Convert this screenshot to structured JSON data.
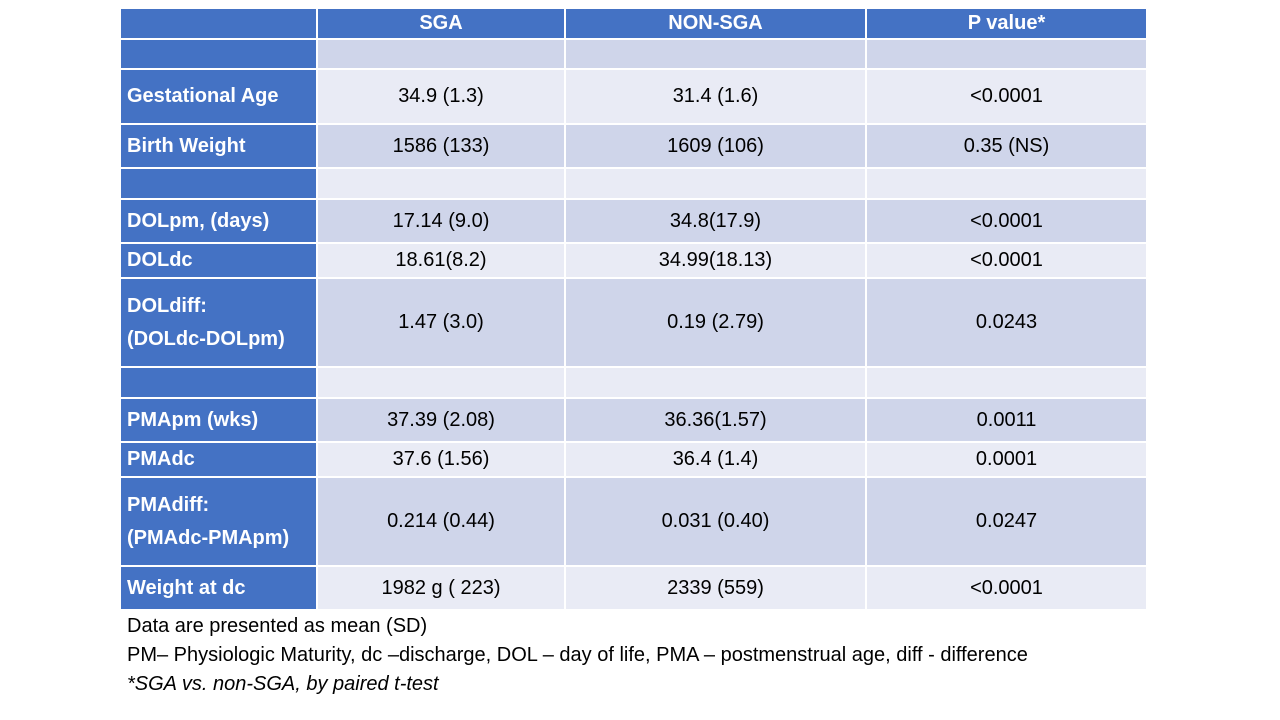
{
  "table": {
    "headers": [
      "",
      "SGA",
      "NON-SGA",
      "P value*"
    ],
    "rows": [
      {
        "label": "",
        "sga": "",
        "non_sga": "",
        "p": ""
      },
      {
        "label": "Gestational Age",
        "sga": "34.9 (1.3)",
        "non_sga": "31.4 (1.6)",
        "p": "<0.0001"
      },
      {
        "label": "Birth Weight",
        "sga": "1586 (133)",
        "non_sga": "1609 (106)",
        "p": "0.35 (NS)"
      },
      {
        "label": "",
        "sga": "",
        "non_sga": "",
        "p": ""
      },
      {
        "label": "DOLpm, (days)",
        "sga": "17.14 (9.0)",
        "non_sga": "34.8(17.9)",
        "p": "<0.0001"
      },
      {
        "label": "DOLdc",
        "sga": "18.61(8.2)",
        "non_sga": "34.99(18.13)",
        "p": "<0.0001"
      },
      {
        "label_line1": "DOLdiff:",
        "label_line2": "(DOLdc-DOLpm)",
        "sga": "1.47 (3.0)",
        "non_sga": "0.19 (2.79)",
        "p": "0.0243"
      },
      {
        "label": "",
        "sga": "",
        "non_sga": "",
        "p": ""
      },
      {
        "label": "PMApm (wks)",
        "sga": "37.39 (2.08)",
        "non_sga": "36.36(1.57)",
        "p": "0.0011"
      },
      {
        "label": "PMAdc",
        "sga": "37.6 (1.56)",
        "non_sga": "36.4 (1.4)",
        "p": "0.0001"
      },
      {
        "label_line1": "PMAdiff:",
        "label_line2": "(PMAdc-PMApm)",
        "sga": "0.214 (0.44)",
        "non_sga": "0.031 (0.40)",
        "p": "0.0247"
      },
      {
        "label": "Weight at dc",
        "sga": "1982 g ( 223)",
        "non_sga": "2339 (559)",
        "p": "<0.0001"
      }
    ]
  },
  "footnotes": {
    "line1": "Data are presented as mean (SD)",
    "line2": "PM– Physiologic Maturity, dc –discharge, DOL – day of life, PMA – postmenstrual age, diff - difference",
    "line3": "*SGA vs. non-SGA, by paired t-test"
  },
  "colors": {
    "header_bg": "#4472c4",
    "row_light": "#e9ebf5",
    "row_dark": "#cfd5ea"
  }
}
